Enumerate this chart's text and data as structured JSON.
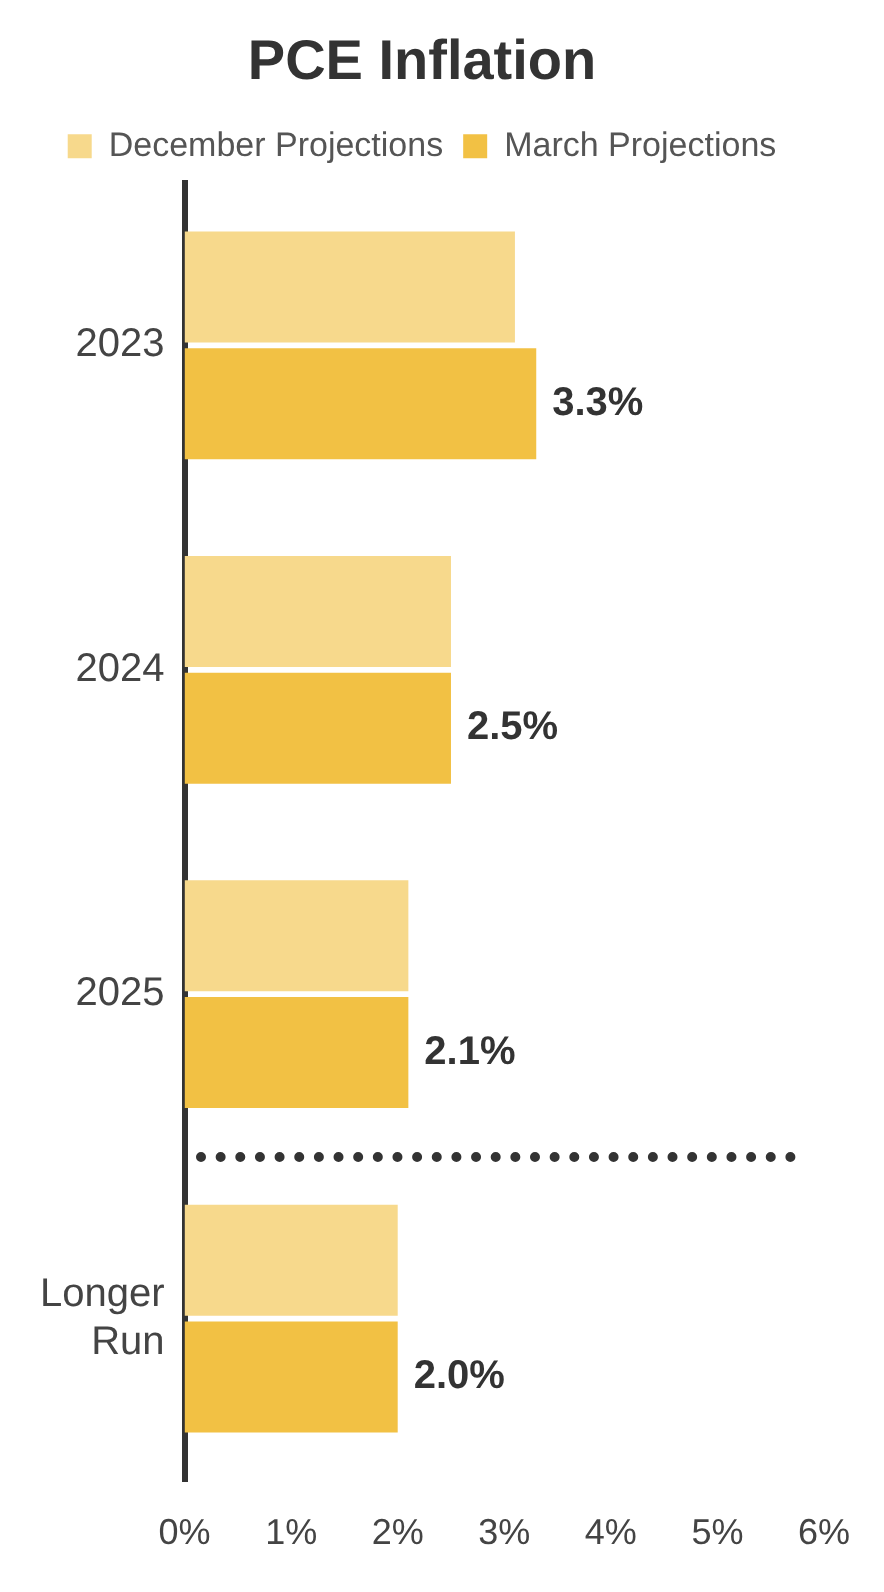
{
  "chart_data": {
    "type": "bar",
    "title": "PCE Inflation",
    "orientation": "horizontal",
    "categories": [
      "2023",
      "2024",
      "2025",
      "Longer Run"
    ],
    "series": [
      {
        "name": "December Projections",
        "color": "#f7d98c",
        "values": [
          3.1,
          2.5,
          2.1,
          2.0
        ]
      },
      {
        "name": "March Projections",
        "color": "#f2c144",
        "values": [
          3.3,
          2.5,
          2.1,
          2.0
        ],
        "value_labels": [
          "3.3%",
          "2.5%",
          "2.1%",
          "2.0%"
        ]
      }
    ],
    "xlim": [
      0,
      6
    ],
    "xticks": [
      {
        "value": 0,
        "label": "0%"
      },
      {
        "value": 1,
        "label": "1%"
      },
      {
        "value": 2,
        "label": "2%"
      },
      {
        "value": 3,
        "label": "3%"
      },
      {
        "value": 4,
        "label": "4%"
      },
      {
        "value": 5,
        "label": "5%"
      },
      {
        "value": 6,
        "label": "6%"
      }
    ],
    "grid": false,
    "legend": "top"
  }
}
